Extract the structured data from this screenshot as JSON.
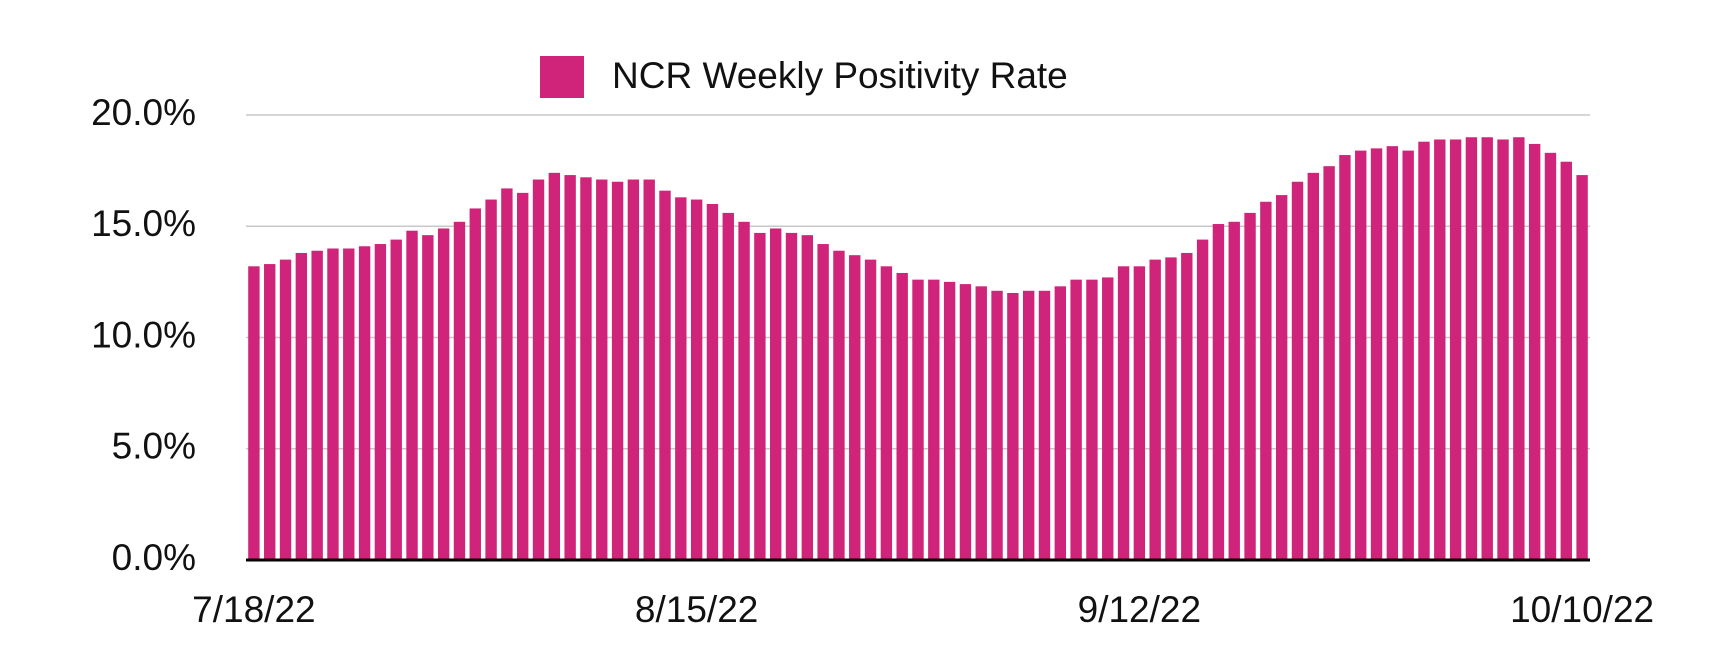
{
  "chart_data": {
    "type": "bar",
    "legend": "NCR Weekly Positivity Rate",
    "color": "#cf2479",
    "categories": [
      "7/18/22",
      null,
      null,
      null,
      null,
      null,
      null,
      null,
      null,
      null,
      null,
      null,
      null,
      null,
      null,
      null,
      null,
      null,
      null,
      null,
      null,
      null,
      null,
      null,
      null,
      null,
      null,
      null,
      "8/15/22",
      null,
      null,
      null,
      null,
      null,
      null,
      null,
      null,
      null,
      null,
      null,
      null,
      null,
      null,
      null,
      null,
      null,
      null,
      null,
      null,
      null,
      null,
      null,
      null,
      null,
      null,
      null,
      "9/12/22",
      null,
      null,
      null,
      null,
      null,
      null,
      null,
      null,
      null,
      null,
      null,
      null,
      null,
      null,
      null,
      null,
      null,
      null,
      null,
      null,
      null,
      null,
      null,
      null,
      null,
      null,
      null,
      "10/10/22"
    ],
    "values": [
      13.2,
      13.3,
      13.5,
      13.8,
      13.9,
      14.0,
      14.0,
      14.1,
      14.2,
      14.4,
      14.8,
      14.6,
      14.9,
      15.2,
      15.8,
      16.2,
      16.7,
      16.5,
      17.1,
      17.4,
      17.3,
      17.2,
      17.1,
      17.0,
      17.1,
      17.1,
      16.6,
      16.3,
      16.2,
      16.0,
      15.6,
      15.2,
      14.7,
      14.9,
      14.7,
      14.6,
      14.2,
      13.9,
      13.7,
      13.5,
      13.2,
      12.9,
      12.6,
      12.6,
      12.5,
      12.4,
      12.3,
      12.1,
      12.0,
      12.1,
      12.1,
      12.3,
      12.6,
      12.6,
      12.7,
      13.2,
      13.2,
      13.5,
      13.6,
      13.8,
      14.4,
      15.1,
      15.2,
      15.6,
      16.1,
      16.4,
      17.0,
      17.4,
      17.7,
      18.2,
      18.4,
      18.5,
      18.6,
      18.4,
      18.8,
      18.9,
      18.9,
      19.0,
      19.0,
      18.9,
      19.0,
      18.7,
      18.3,
      17.9,
      17.3
    ],
    "ylim": [
      0,
      20
    ],
    "yticks": [
      {
        "value": 0,
        "label": "0.0%"
      },
      {
        "value": 5,
        "label": "5.0%"
      },
      {
        "value": 10,
        "label": "10.0%"
      },
      {
        "value": 15,
        "label": "15.0%"
      },
      {
        "value": 20,
        "label": "20.0%"
      }
    ],
    "grid": true
  }
}
